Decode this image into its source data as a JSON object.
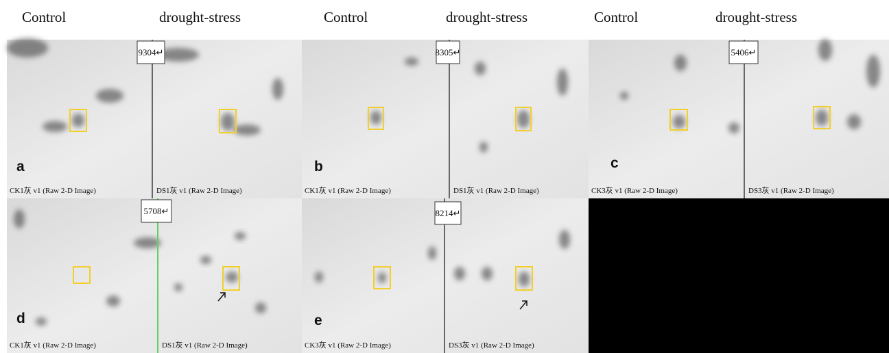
{
  "headers": [
    {
      "control": "Control",
      "stress": "drought-stress"
    },
    {
      "control": "Control",
      "stress": "drought-stress"
    },
    {
      "control": "Control",
      "stress": "drought-stress"
    }
  ],
  "panels": [
    {
      "letter": "a",
      "spot": "9304↵",
      "left_caption": "CK1灰 v1 (Raw 2-D Image)",
      "right_caption": "DS1灰 v1 (Raw 2-D Image)"
    },
    {
      "letter": "b",
      "spot": "8305↵",
      "left_caption": "CK1灰 v1 (Raw 2-D Image)",
      "right_caption": "DS1灰 v1 (Raw 2-D Image)"
    },
    {
      "letter": "c",
      "spot": "5406↵",
      "left_caption": "CK3灰 v1 (Raw 2-D Image)",
      "right_caption": "DS3灰 v1 (Raw 2-D Image)"
    },
    {
      "letter": "d",
      "spot": "5708↵",
      "left_caption": "CK1灰 v1 (Raw 2-D Image)",
      "right_caption": "DS1灰 v1 (Raw 2-D Image)"
    },
    {
      "letter": "e",
      "spot": "8214↵",
      "left_caption": "CK3灰 v1 (Raw 2-D Image)",
      "right_caption": "DS3灰 v1 (Raw 2-D Image)"
    }
  ]
}
